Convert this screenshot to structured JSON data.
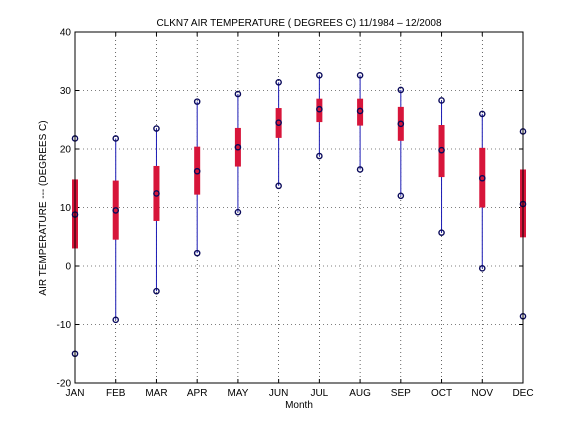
{
  "chart_data": {
    "type": "box",
    "title": "CLKN7  AIR TEMPERATURE ( DEGREES C) 11/1984 – 12/2008",
    "xlabel": "Month",
    "ylabel": "AIR TEMPERATURE --- (DEGREES C)",
    "ylim": [
      -20,
      40
    ],
    "yticks": [
      -20,
      -10,
      0,
      10,
      20,
      30,
      40
    ],
    "grid": true,
    "categories": [
      "JAN",
      "FEB",
      "MAR",
      "APR",
      "MAY",
      "JUN",
      "JUL",
      "AUG",
      "SEP",
      "OCT",
      "NOV",
      "DEC"
    ],
    "series": [
      {
        "min": [
          -15.0,
          -9.2,
          -4.3,
          2.2,
          9.2,
          13.7,
          18.8,
          16.5,
          12.0,
          5.7,
          -0.4,
          -8.6
        ],
        "q1": [
          3.0,
          4.5,
          7.7,
          12.2,
          17.0,
          21.9,
          24.6,
          24.0,
          21.4,
          15.2,
          10.0,
          4.9
        ],
        "median": [
          8.8,
          9.5,
          12.4,
          16.2,
          20.3,
          24.5,
          26.8,
          26.5,
          24.3,
          19.8,
          15.0,
          10.6
        ],
        "q3": [
          14.8,
          14.6,
          17.1,
          20.4,
          23.6,
          27.0,
          28.6,
          28.6,
          27.2,
          24.1,
          20.2,
          16.5
        ],
        "max": [
          21.8,
          21.8,
          23.5,
          28.1,
          29.4,
          31.4,
          32.6,
          32.6,
          30.1,
          28.3,
          26.0,
          23.0
        ]
      }
    ],
    "colors": {
      "box": "#d7153a",
      "whisker": "#1a1ab4",
      "marker": "#0a0a5a",
      "grid": "#000000",
      "axis": "#000000"
    }
  }
}
